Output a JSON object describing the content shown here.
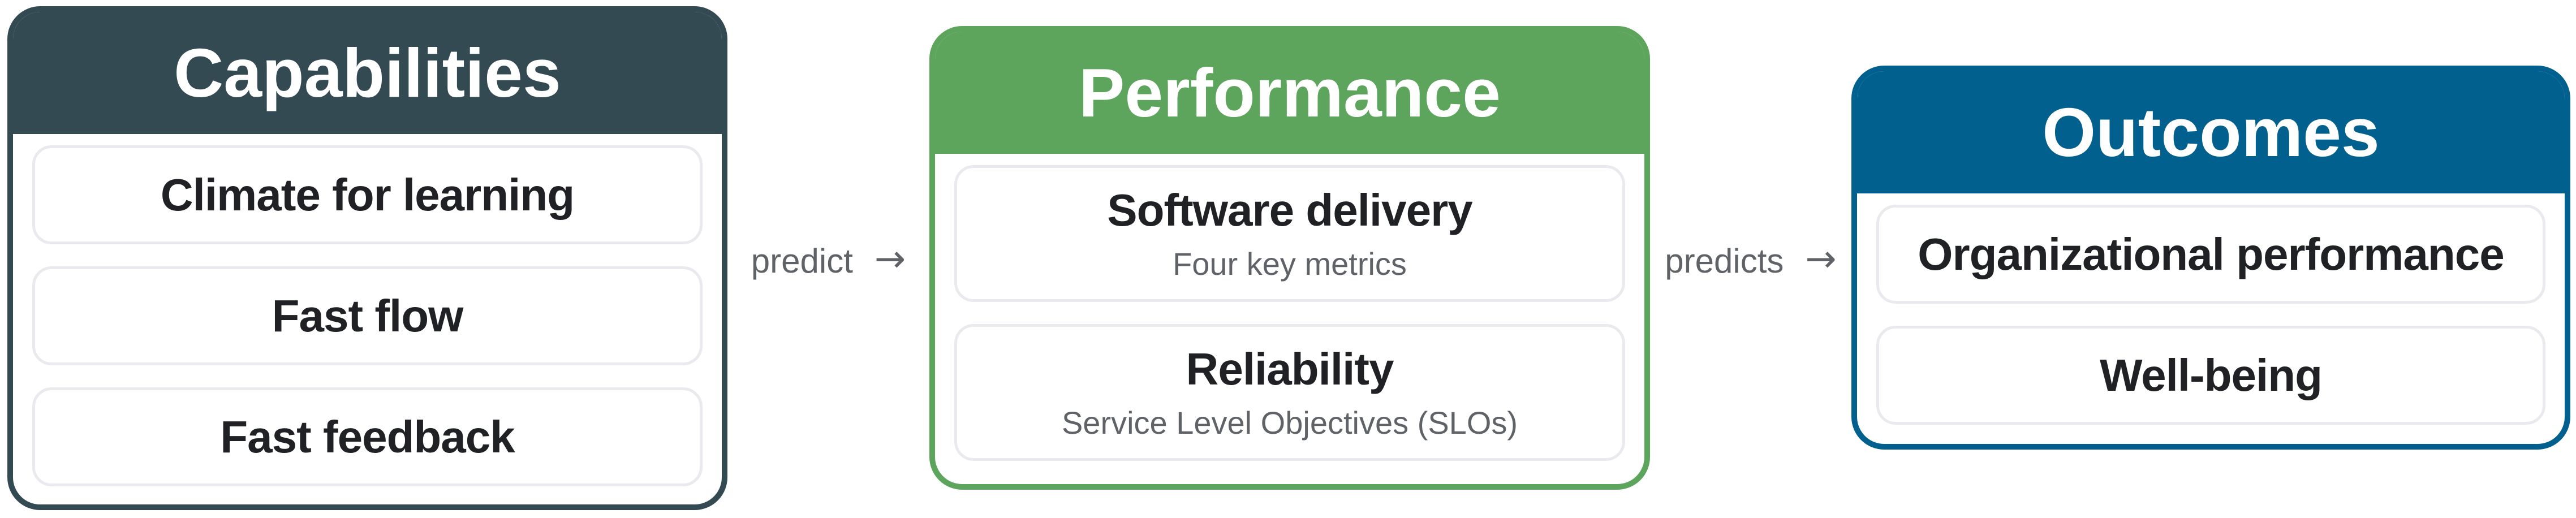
{
  "diagram": {
    "capabilities": {
      "title": "Capabilities",
      "header_color": "#344A53",
      "items": [
        "Climate for learning",
        "Fast flow",
        "Fast feedback"
      ]
    },
    "performance": {
      "title": "Performance",
      "header_color": "#5DA55C",
      "items": [
        {
          "title": "Software delivery",
          "subtitle": "Four key metrics"
        },
        {
          "title": "Reliability",
          "subtitle": "Service Level Objectives (SLOs)"
        }
      ]
    },
    "outcomes": {
      "title": "Outcomes",
      "header_color": "#01608E",
      "items": [
        "Organizational performance",
        "Well-being"
      ]
    },
    "connectors": [
      {
        "label": "predict",
        "arrow": "→"
      },
      {
        "label": "predicts",
        "arrow": "→"
      }
    ],
    "colors": {
      "capabilities_header": "#344A53",
      "performance_header": "#5DA55C",
      "outcomes_header": "#01608E",
      "item_border": "#E9EAED",
      "header_text": "#FFFFFF",
      "item_text": "#202124",
      "subtitle_text": "#5F6368",
      "connector_text": "#5F6368",
      "background": "#FFFFFF"
    }
  }
}
